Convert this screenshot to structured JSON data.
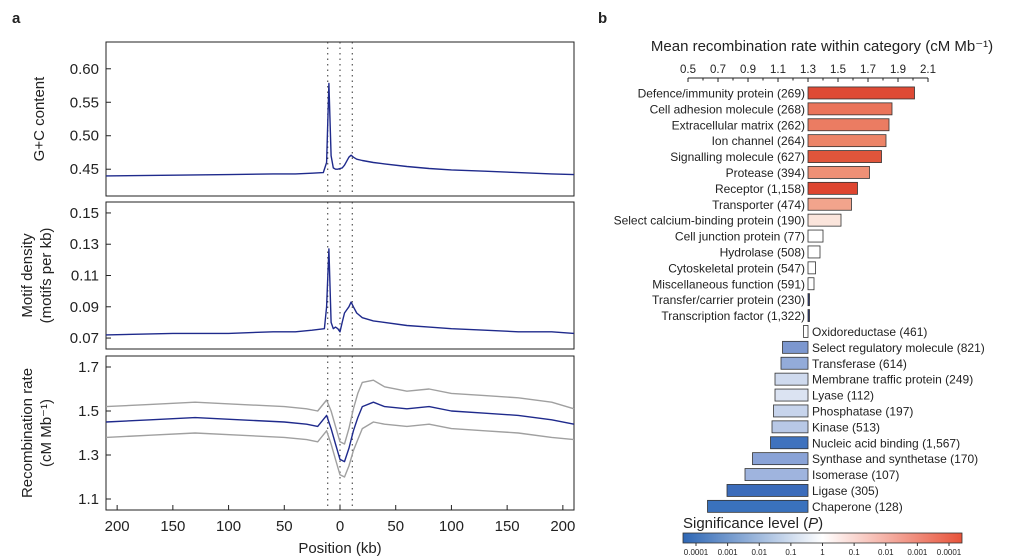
{
  "panel_a_label": "a",
  "panel_b_label": "b",
  "chart_data": [
    {
      "type": "line",
      "panel": "a",
      "xlabel": "Position (kb)",
      "xticks": [
        200,
        150,
        100,
        50,
        0,
        50,
        100,
        150,
        200
      ],
      "xlim": [
        -210,
        210
      ],
      "vlines": [
        -11,
        0,
        11
      ],
      "subplots": [
        {
          "ylabel": "G+C content",
          "ylim": [
            0.41,
            0.64
          ],
          "yticks": [
            "0.45",
            "0.50",
            "0.55",
            "0.60"
          ],
          "ytick_values": [
            0.45,
            0.5,
            0.55,
            0.6
          ],
          "series": [
            {
              "x": [
                -210,
                -150,
                -100,
                -60,
                -40,
                -25,
                -15,
                -12,
                -10,
                -8,
                -6,
                -4,
                -2,
                0,
                2,
                4,
                6,
                8,
                10,
                12,
                15,
                20,
                30,
                40,
                60,
                80,
                100,
                130,
                160,
                190,
                210
              ],
              "y": [
                0.44,
                0.441,
                0.442,
                0.443,
                0.443,
                0.444,
                0.445,
                0.46,
                0.578,
                0.47,
                0.452,
                0.45,
                0.45,
                0.451,
                0.452,
                0.456,
                0.462,
                0.468,
                0.471,
                0.468,
                0.465,
                0.463,
                0.46,
                0.458,
                0.454,
                0.451,
                0.449,
                0.447,
                0.445,
                0.443,
                0.442
              ],
              "color": "#1f2a8c"
            }
          ]
        },
        {
          "ylabel": "Motif density (motifs per kb)",
          "ylim": [
            0.063,
            0.157
          ],
          "yticks": [
            "0.07",
            "0.09",
            "0.11",
            "0.13",
            "0.15"
          ],
          "ytick_values": [
            0.07,
            0.09,
            0.11,
            0.13,
            0.15
          ],
          "series": [
            {
              "x": [
                -210,
                -150,
                -100,
                -60,
                -40,
                -25,
                -14,
                -12,
                -10,
                -8,
                -6,
                -4,
                -2,
                0,
                2,
                4,
                6,
                8,
                10,
                12,
                15,
                20,
                30,
                40,
                60,
                80,
                100,
                130,
                160,
                190,
                210
              ],
              "y": [
                0.072,
                0.073,
                0.073,
                0.074,
                0.074,
                0.075,
                0.076,
                0.09,
                0.127,
                0.08,
                0.076,
                0.077,
                0.076,
                0.074,
                0.08,
                0.086,
                0.088,
                0.09,
                0.093,
                0.09,
                0.086,
                0.083,
                0.081,
                0.08,
                0.078,
                0.077,
                0.076,
                0.075,
                0.074,
                0.074,
                0.073
              ],
              "color": "#1f2a8c"
            }
          ]
        },
        {
          "ylabel": "Recombination rate (cM Mb⁻¹)",
          "ylim": [
            1.05,
            1.75
          ],
          "yticks": [
            "1.1",
            "1.3",
            "1.5",
            "1.7"
          ],
          "ytick_values": [
            1.1,
            1.3,
            1.5,
            1.7
          ],
          "series": [
            {
              "x": [
                -210,
                -170,
                -130,
                -90,
                -50,
                -30,
                -20,
                -12,
                -8,
                -4,
                0,
                4,
                8,
                12,
                16,
                20,
                30,
                40,
                60,
                80,
                100,
                130,
                160,
                190,
                210
              ],
              "y": [
                1.45,
                1.46,
                1.47,
                1.46,
                1.45,
                1.44,
                1.43,
                1.48,
                1.42,
                1.35,
                1.28,
                1.27,
                1.33,
                1.41,
                1.47,
                1.52,
                1.54,
                1.52,
                1.51,
                1.52,
                1.5,
                1.49,
                1.48,
                1.46,
                1.44
              ],
              "color": "#1f2a8c"
            },
            {
              "x": [
                -210,
                -170,
                -130,
                -90,
                -50,
                -30,
                -20,
                -12,
                -8,
                -4,
                0,
                4,
                8,
                12,
                16,
                20,
                30,
                40,
                60,
                80,
                100,
                130,
                160,
                190,
                210
              ],
              "y": [
                1.52,
                1.53,
                1.54,
                1.53,
                1.52,
                1.51,
                1.5,
                1.55,
                1.5,
                1.43,
                1.36,
                1.35,
                1.42,
                1.51,
                1.58,
                1.63,
                1.64,
                1.61,
                1.59,
                1.6,
                1.58,
                1.57,
                1.56,
                1.54,
                1.51
              ],
              "color": "#a0a0a0"
            },
            {
              "x": [
                -210,
                -170,
                -130,
                -90,
                -50,
                -30,
                -20,
                -12,
                -8,
                -4,
                0,
                4,
                8,
                12,
                16,
                20,
                30,
                40,
                60,
                80,
                100,
                130,
                160,
                190,
                210
              ],
              "y": [
                1.38,
                1.39,
                1.4,
                1.39,
                1.38,
                1.37,
                1.36,
                1.41,
                1.35,
                1.28,
                1.21,
                1.2,
                1.25,
                1.32,
                1.37,
                1.42,
                1.45,
                1.44,
                1.43,
                1.44,
                1.42,
                1.41,
                1.4,
                1.38,
                1.37
              ],
              "color": "#a0a0a0"
            }
          ]
        }
      ]
    },
    {
      "type": "bar",
      "panel": "b",
      "orientation": "horizontal",
      "title": "Mean recombination rate  within category (cM Mb⁻¹)",
      "baseline": 1.3,
      "xlim": [
        0.42,
        2.2
      ],
      "xticks": [
        "0.5",
        "0.7",
        "0.9",
        "1.1",
        "1.3",
        "1.5",
        "1.7",
        "1.9",
        "2.1"
      ],
      "xtick_values": [
        0.5,
        0.7,
        0.9,
        1.1,
        1.3,
        1.5,
        1.7,
        1.9,
        2.1
      ],
      "categories": [
        "Defence/immunity protein (269)",
        "Cell adhesion molecule (268)",
        "Extracellular matrix (262)",
        "Ion channel (264)",
        "Signalling molecule (627)",
        "Protease (394)",
        "Receptor (1,158)",
        "Transporter (474)",
        "Select calcium-binding protein (190)",
        "Cell junction protein (77)",
        "Hydrolase (508)",
        "Cytoskeletal protein (547)",
        "Miscellaneous function (591)",
        "Transfer/carrier protein (230)",
        "Transcription factor (1,322)",
        "Oxidoreductase (461)",
        "Select regulatory molecule (821)",
        "Transferase (614)",
        "Membrane traffic protein (249)",
        "Lyase (112)",
        "Phosphatase (197)",
        "Kinase (513)",
        "Nucleic acid binding (1,567)",
        "Synthase and synthetase (170)",
        "Isomerase (107)",
        "Ligase (305)",
        "Chaperone (128)"
      ],
      "values": [
        2.01,
        1.86,
        1.84,
        1.82,
        1.79,
        1.71,
        1.63,
        1.59,
        1.52,
        1.4,
        1.38,
        1.35,
        1.34,
        1.31,
        1.305,
        1.27,
        1.13,
        1.12,
        1.08,
        1.08,
        1.07,
        1.06,
        1.05,
        0.93,
        0.88,
        0.76,
        0.63
      ],
      "colors": [
        "#de4a35",
        "#ea745a",
        "#eb7c62",
        "#ed8467",
        "#e0553b",
        "#ee9076",
        "#de4530",
        "#f2a48c",
        "#fbe5dc",
        "#ffffff",
        "#ffffff",
        "#ffffff",
        "#ffffff",
        "#2b3b7a",
        "#2b3b7a",
        "#ffffff",
        "#7c97cf",
        "#93abd9",
        "#cfdaee",
        "#dbe3f2",
        "#c7d4ec",
        "#b8c8e6",
        "#3f72be",
        "#8aa3d7",
        "#9fb4de",
        "#3b6cbb",
        "#3a72bd"
      ],
      "legend_title": "Significance level (P)",
      "legend_ticks": [
        "0.0001",
        "0.001",
        "0.01",
        "0.1",
        "1",
        "0.1",
        "0.01",
        "0.001",
        "0.0001"
      ],
      "legend_colors": [
        "#2e67b5",
        "#ffffff",
        "#e8533a"
      ]
    }
  ]
}
